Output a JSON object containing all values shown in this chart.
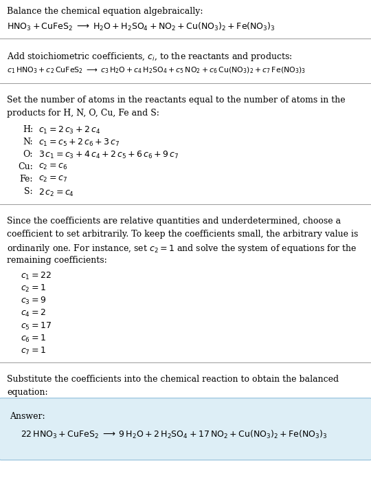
{
  "title_line": "Balance the chemical equation algebraically:",
  "eq1": "$\\mathrm{HNO_3 + CuFeS_2 \\;\\longrightarrow\\; H_2O + H_2SO_4 + NO_2 + Cu(NO_3)_2 + Fe(NO_3)_3}$",
  "section2_title": "Add stoichiometric coefficients, $c_i$, to the reactants and products:",
  "eq2": "$c_1\\,\\mathrm{HNO_3} + c_2\\,\\mathrm{CuFeS_2} \\;\\longrightarrow\\; c_3\\,\\mathrm{H_2O} + c_4\\,\\mathrm{H_2SO_4} + c_5\\,\\mathrm{NO_2} + c_6\\,\\mathrm{Cu(NO_3)_2} + c_7\\,\\mathrm{Fe(NO_3)_3}$",
  "section3_title": "Set the number of atoms in the reactants equal to the number of atoms in the\nproducts for H, N, O, Cu, Fe and S:",
  "atom_eqs": [
    [
      "H:",
      "$c_1 = 2\\,c_3 + 2\\,c_4$"
    ],
    [
      "N:",
      "$c_1 = c_5 + 2\\,c_6 + 3\\,c_7$"
    ],
    [
      "O:",
      "$3\\,c_1 = c_3 + 4\\,c_4 + 2\\,c_5 + 6\\,c_6 + 9\\,c_7$"
    ],
    [
      "Cu:",
      "$c_2 = c_6$"
    ],
    [
      "Fe:",
      "$c_2 = c_7$"
    ],
    [
      "S:",
      "$2\\,c_2 = c_4$"
    ]
  ],
  "section4_text": "Since the coefficients are relative quantities and underdetermined, choose a\ncoefficient to set arbitrarily. To keep the coefficients small, the arbitrary value is\nordinarily one. For instance, set $c_2 = 1$ and solve the system of equations for the\nremaining coefficients:",
  "coeff_list": [
    "$c_1 = 22$",
    "$c_2 = 1$",
    "$c_3 = 9$",
    "$c_4 = 2$",
    "$c_5 = 17$",
    "$c_6 = 1$",
    "$c_7 = 1$"
  ],
  "section5_text": "Substitute the coefficients into the chemical reaction to obtain the balanced\nequation:",
  "answer_label": "Answer:",
  "answer_eq": "$22\\,\\mathrm{HNO_3} + \\mathrm{CuFeS_2} \\;\\longrightarrow\\; 9\\,\\mathrm{H_2O} + 2\\,\\mathrm{H_2SO_4} + 17\\,\\mathrm{NO_2} + \\mathrm{Cu(NO_3)_2} + \\mathrm{Fe(NO_3)_3}$",
  "bg_color": "#ffffff",
  "answer_box_color": "#ddeef6",
  "answer_box_border": "#a0c8e0",
  "text_color": "#000000",
  "font_size": 9.0
}
